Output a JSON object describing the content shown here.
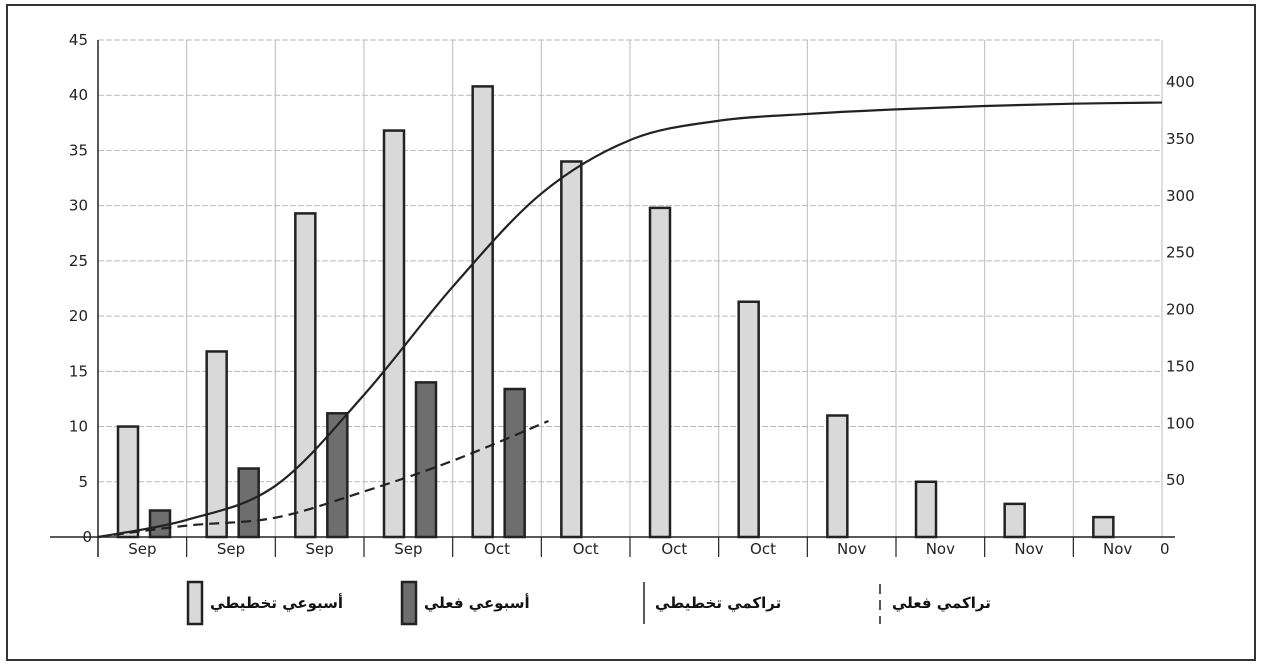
{
  "chart_data": {
    "type": "bar",
    "categories": [
      "Sep",
      "Sep",
      "Sep",
      "Sep",
      "Oct",
      "Oct",
      "Oct",
      "Oct",
      "Nov",
      "Nov",
      "Nov",
      "Nov"
    ],
    "left_axis": {
      "ylim": [
        0,
        45
      ],
      "ticks": [
        0,
        5,
        10,
        15,
        20,
        25,
        30,
        35,
        40,
        45
      ]
    },
    "right_axis": {
      "ylim": [
        0,
        437
      ],
      "ticks": [
        0,
        50,
        100,
        150,
        200,
        250,
        300,
        350,
        400
      ]
    },
    "grid": true,
    "legend_placement": "bottom",
    "series": [
      {
        "name": "أسبوعي تخطيطي",
        "kind": "bar",
        "axis": "left",
        "color": "#d9d9d9",
        "values": [
          10,
          16.8,
          29.3,
          36.8,
          40.8,
          34,
          29.8,
          21.3,
          11,
          5,
          3,
          1.8
        ]
      },
      {
        "name": "أسبوعي فعلي",
        "kind": "bar",
        "axis": "left",
        "color": "#6e6e6e",
        "values": [
          2.4,
          6.2,
          11.2,
          14,
          13.4,
          null,
          null,
          null,
          null,
          null,
          null,
          null
        ]
      },
      {
        "name": "تراكمي تخطيطي",
        "kind": "line",
        "axis": "right",
        "style": "solid",
        "x": [
          0,
          1,
          2,
          3,
          4,
          5,
          6,
          7,
          8,
          9,
          10,
          11,
          12
        ],
        "values": [
          0,
          15,
          45,
          125,
          220,
          302,
          349,
          366,
          372,
          376,
          379,
          381,
          382
        ]
      },
      {
        "name": "تراكمي فعلي",
        "kind": "line",
        "axis": "right",
        "style": "dashed",
        "x": [
          0,
          1,
          2,
          3,
          4,
          5.08
        ],
        "values": [
          0,
          10,
          17,
          40,
          67,
          102
        ]
      }
    ]
  }
}
